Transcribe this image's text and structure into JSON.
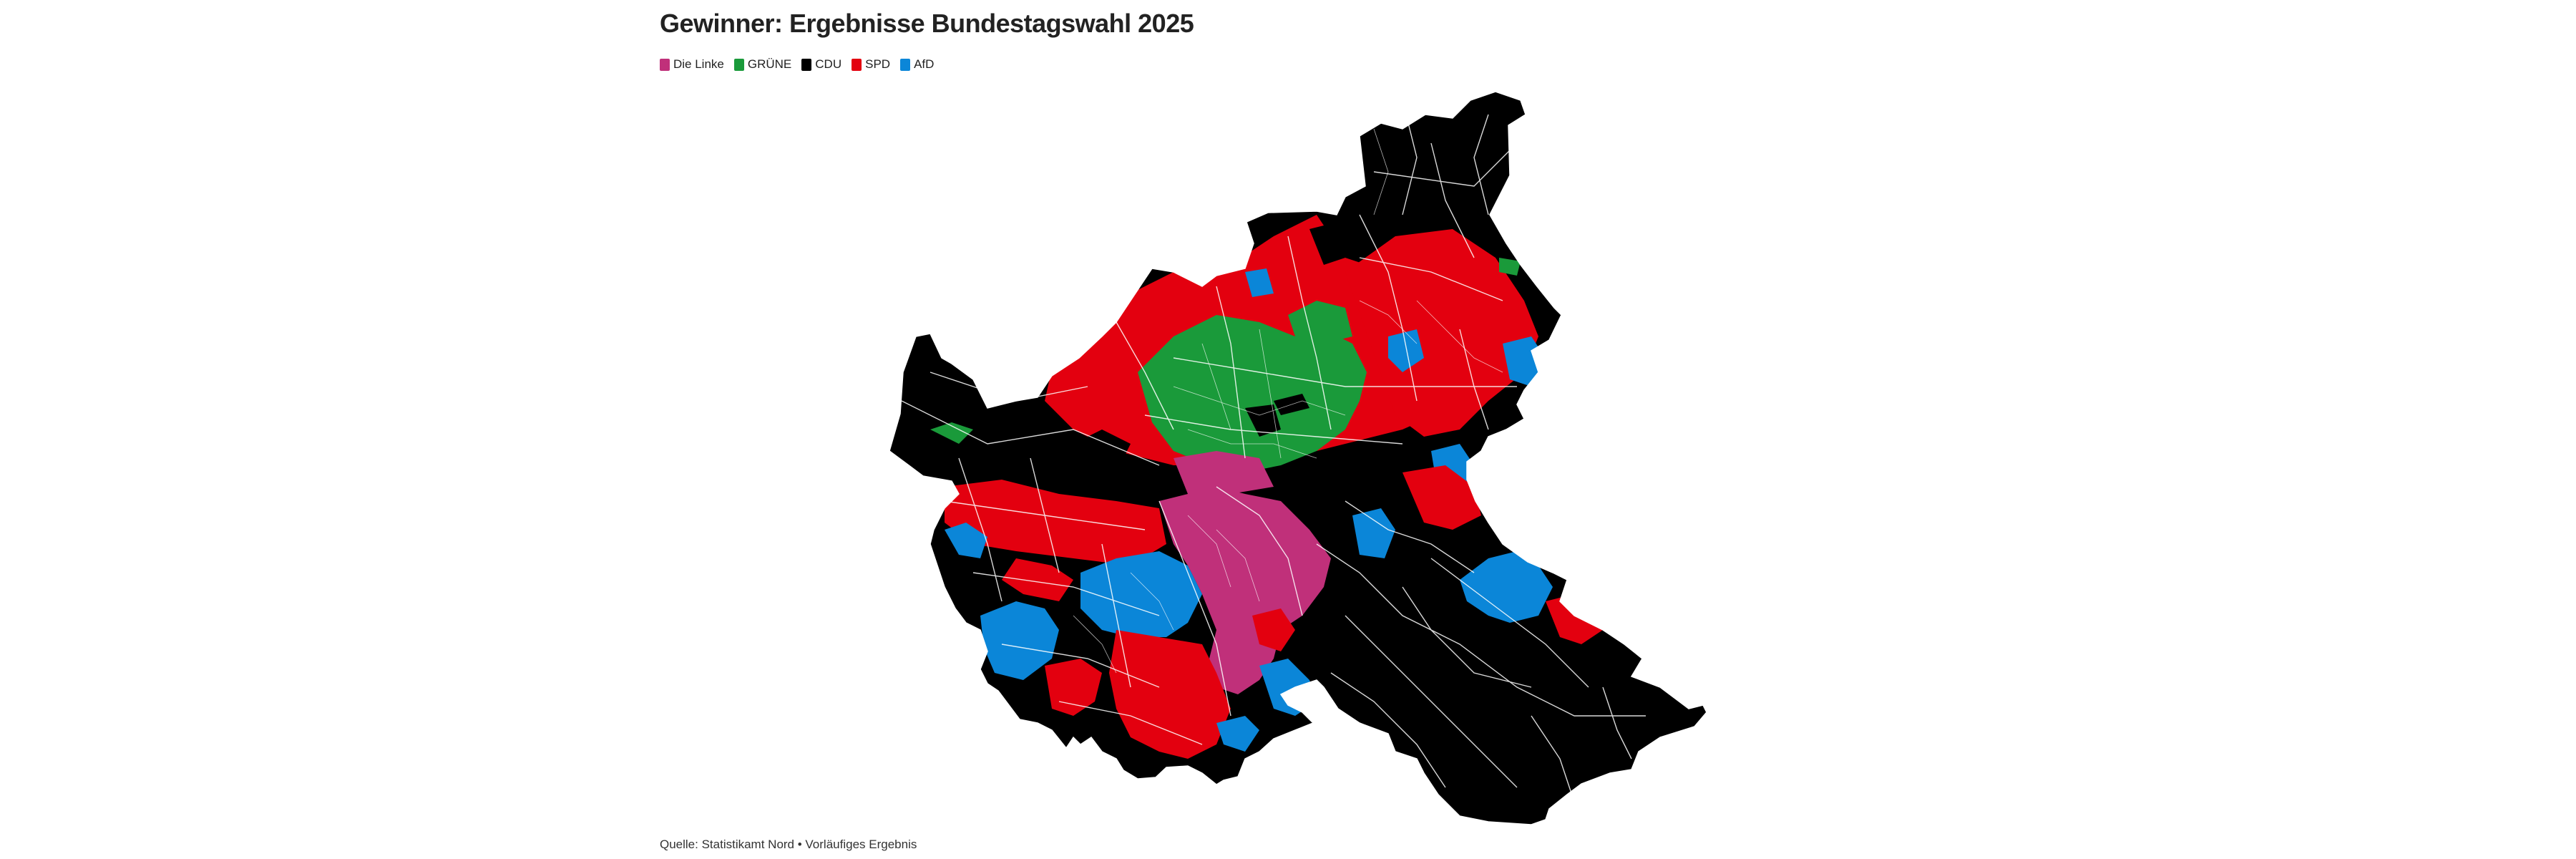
{
  "title": "Gewinner: Ergebnisse Bundestagswahl 2025",
  "legend": [
    {
      "label": "Die Linke",
      "color": "#c0307a"
    },
    {
      "label": "GRÜNE",
      "color": "#1a9a3a"
    },
    {
      "label": "CDU",
      "color": "#000000"
    },
    {
      "label": "SPD",
      "color": "#e3000f"
    },
    {
      "label": "AfD",
      "color": "#0b86d8"
    }
  ],
  "source": "Quelle: Statistikamt Nord • Vorläufiges Ergebnis"
}
